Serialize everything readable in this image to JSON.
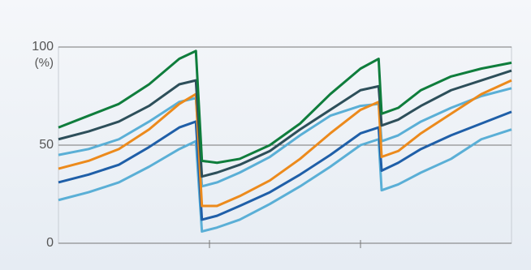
{
  "chart_data": {
    "type": "line",
    "y_label": "(%)",
    "x": [
      0,
      2,
      4,
      6,
      8,
      9.1,
      9.5,
      10.5,
      12,
      14,
      16,
      18,
      20,
      21.2,
      21.4,
      22.5,
      24,
      26,
      28,
      30
    ],
    "xlim": [
      0,
      30
    ],
    "xticks": [
      10,
      20
    ],
    "ylim": [
      0,
      100
    ],
    "yticks": [
      0,
      50,
      100
    ],
    "grid": true,
    "series": [
      {
        "color": "#5aafd6",
        "values": [
          22,
          26,
          31,
          39,
          48,
          52,
          6,
          8,
          12,
          20,
          29,
          39,
          50,
          53,
          27,
          30,
          36,
          43,
          53,
          58
        ]
      },
      {
        "color": "#1f5fa8",
        "values": [
          31,
          35,
          40,
          49,
          59,
          62,
          12,
          14,
          19,
          26,
          35,
          45,
          56,
          59,
          37,
          41,
          48,
          55,
          61,
          67
        ]
      },
      {
        "color": "#5aafd6",
        "values": [
          45,
          48,
          53,
          62,
          72,
          74,
          29,
          31,
          36,
          44,
          55,
          65,
          70,
          71,
          52,
          55,
          62,
          69,
          75,
          79
        ]
      },
      {
        "color": "#ec8a1c",
        "values": [
          38,
          42,
          48,
          58,
          71,
          76,
          19,
          19,
          24,
          32,
          43,
          56,
          68,
          72,
          44,
          47,
          56,
          66,
          76,
          83
        ]
      },
      {
        "color": "#2d4f5a",
        "values": [
          53,
          57,
          62,
          70,
          81,
          83,
          34,
          36,
          40,
          47,
          58,
          68,
          78,
          80,
          60,
          63,
          70,
          78,
          83,
          88
        ]
      },
      {
        "color": "#0f7d3c",
        "values": [
          59,
          65,
          71,
          81,
          94,
          98,
          42,
          41,
          43,
          50,
          61,
          76,
          89,
          94,
          66,
          69,
          78,
          85,
          89,
          92
        ]
      }
    ]
  }
}
